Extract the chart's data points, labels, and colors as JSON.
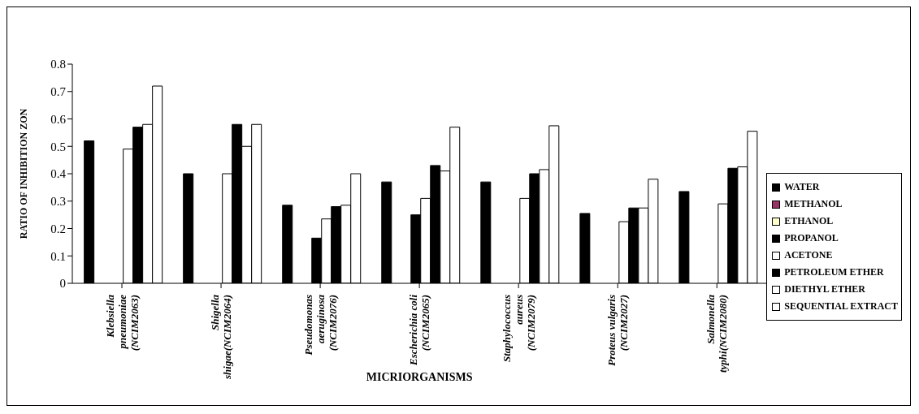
{
  "chart_data": {
    "type": "bar",
    "xlabel": "MICRIORGANISMS",
    "ylabel": "RATIO OF INHIBITION ZON",
    "categories": [
      "Klebsiella pneumoniae (NCIM2063)",
      "Shigella shigae(NCIM2064)",
      "Pseudomonas aeruginosa (NCIM2076)",
      "Escherichia coli (NCIM2065)",
      "Staphylococcus aureus (NCIM2079)",
      "Proteus vulgaris (NCIM2027)",
      "Salmonella typhi(NCIM2080)"
    ],
    "series": [
      {
        "name": "WATER",
        "color": "#000000",
        "values": [
          0.52,
          0.4,
          0.285,
          0.37,
          0.37,
          0.255,
          0.335
        ]
      },
      {
        "name": "METHANOL",
        "color": "#993366",
        "values": [
          null,
          null,
          null,
          null,
          null,
          null,
          null
        ]
      },
      {
        "name": "ETHANOL",
        "color": "#ffffcc",
        "values": [
          null,
          null,
          null,
          null,
          null,
          null,
          null
        ]
      },
      {
        "name": "PROPANOL",
        "color": "#000000",
        "values": [
          null,
          null,
          0.165,
          0.25,
          null,
          null,
          null
        ]
      },
      {
        "name": "ACETONE",
        "color": "#ffffff",
        "values": [
          0.49,
          0.4,
          0.235,
          0.31,
          0.31,
          0.225,
          0.29
        ]
      },
      {
        "name": "PETROLEUM ETHER",
        "color": "#000000",
        "values": [
          0.57,
          0.58,
          0.28,
          0.43,
          0.4,
          0.275,
          0.42
        ]
      },
      {
        "name": "DIETHYL ETHER",
        "color": "#ffffff",
        "values": [
          0.58,
          0.5,
          0.285,
          0.41,
          0.415,
          0.275,
          0.425
        ]
      },
      {
        "name": "SEQUENTIAL EXTRACT",
        "color": "#ffffff",
        "values": [
          0.72,
          0.58,
          0.4,
          0.57,
          0.575,
          0.38,
          0.555
        ]
      }
    ],
    "ylim": [
      0,
      0.8
    ],
    "yticks": [
      0,
      0.1,
      0.2,
      0.3,
      0.4,
      0.5,
      0.6,
      0.7,
      0.8
    ],
    "grid": false,
    "legend": "right"
  }
}
